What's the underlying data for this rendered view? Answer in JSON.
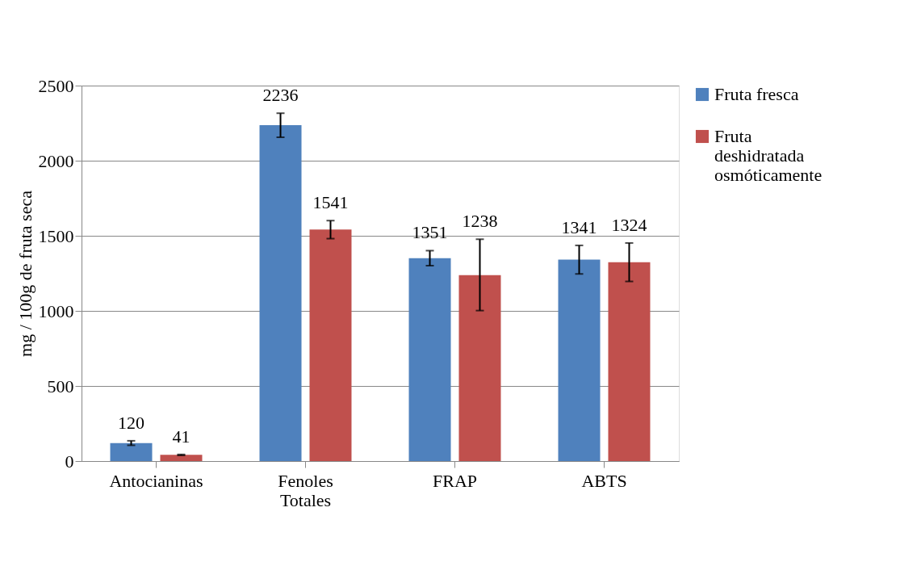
{
  "chart_data": {
    "type": "bar",
    "ylabel": "mg / 100g de fruta seca",
    "categories": [
      "Antocianinas",
      "Fenoles Totales",
      "FRAP",
      "ABTS"
    ],
    "series": [
      {
        "name": "Fruta fresca",
        "color": "#4f81bd",
        "values": [
          120,
          2236,
          1351,
          1341
        ],
        "errors": [
          15,
          80,
          50,
          95
        ]
      },
      {
        "name": "Fruta deshidratada osmóticamente",
        "color": "#c0504d",
        "values": [
          41,
          1541,
          1238,
          1324
        ],
        "errors": [
          3,
          60,
          [
            1002,
            1477
          ],
          128
        ]
      }
    ],
    "ylim": [
      0,
      2500
    ],
    "yticks": [
      0,
      500,
      1000,
      1500,
      2000,
      2500
    ],
    "grid": "y",
    "legend": "right",
    "data_labels": true
  }
}
